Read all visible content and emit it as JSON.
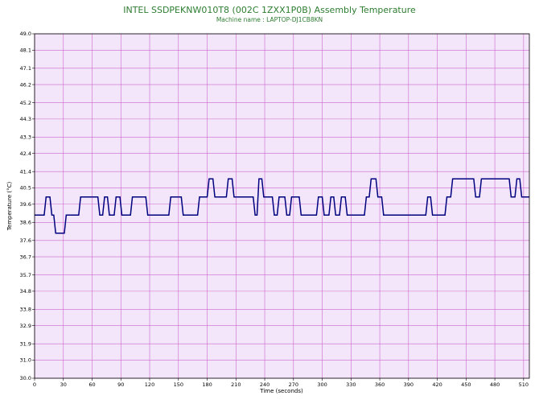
{
  "chart_data": {
    "type": "line",
    "title": "INTEL SSDPEKNW010T8 (002C    1ZXX1P0B) Assembly Temperature",
    "subtitle": "Machine name : LAPTOP-DJ1CB8KN",
    "xlabel": "Time (seconds)",
    "ylabel": "Temperature (°C)",
    "xlim": [
      0,
      516
    ],
    "ylim": [
      30.0,
      49.0
    ],
    "grid": true,
    "legend": "none",
    "colors": {
      "plot_background": "#f3e6fb",
      "grid": "#cc66cc",
      "line": "#00007f",
      "title": "#2e7d32"
    },
    "x_ticks": [
      0,
      30,
      60,
      90,
      120,
      150,
      180,
      210,
      240,
      270,
      300,
      330,
      360,
      390,
      420,
      450,
      480,
      510
    ],
    "x_tick_labels": [
      "0",
      "30",
      "60",
      "90",
      "120",
      "150",
      "180",
      "210",
      "240",
      "270",
      "300",
      "330",
      "360",
      "390",
      "420",
      "450",
      "480",
      "510"
    ],
    "y_ticks": [
      30.0,
      31.0,
      31.9,
      32.9,
      33.8,
      34.8,
      35.7,
      36.7,
      37.6,
      38.6,
      39.6,
      40.5,
      41.4,
      42.4,
      43.3,
      44.3,
      45.2,
      46.2,
      47.1,
      48.1,
      49.0
    ],
    "y_tick_labels": [
      "30.0",
      "31.0",
      "31.9",
      "32.9",
      "33.8",
      "34.8",
      "35.7",
      "36.7",
      "37.6",
      "38.6",
      "39.6",
      "40.5",
      "41.4",
      "42.4",
      "43.3",
      "44.3",
      "45.2",
      "46.2",
      "47.1",
      "48.1",
      "49.0"
    ],
    "series": [
      {
        "x": [
          0,
          10,
          12,
          16,
          18,
          20,
          22,
          31,
          33,
          46,
          48,
          66,
          68,
          71,
          73,
          76,
          78,
          83,
          85,
          89,
          91,
          100,
          102,
          116,
          118,
          140,
          142,
          153,
          155,
          170,
          172,
          180,
          182,
          186,
          188,
          200,
          202,
          206,
          208,
          228,
          230,
          232,
          234,
          237,
          239,
          248,
          250,
          253,
          255,
          261,
          263,
          266,
          268,
          276,
          278,
          294,
          296,
          300,
          302,
          307,
          309,
          312,
          314,
          318,
          320,
          324,
          326,
          344,
          346,
          349,
          351,
          356,
          358,
          362,
          364,
          408,
          410,
          413,
          415,
          428,
          430,
          434,
          436,
          458,
          460,
          464,
          466,
          495,
          497,
          501,
          503,
          506,
          508,
          516
        ],
        "y": [
          39.0,
          39.0,
          40.0,
          40.0,
          39.0,
          39.0,
          38.0,
          38.0,
          39.0,
          39.0,
          40.0,
          40.0,
          39.0,
          39.0,
          40.0,
          40.0,
          39.0,
          39.0,
          40.0,
          40.0,
          39.0,
          39.0,
          40.0,
          40.0,
          39.0,
          39.0,
          40.0,
          40.0,
          39.0,
          39.0,
          40.0,
          40.0,
          41.0,
          41.0,
          40.0,
          40.0,
          41.0,
          41.0,
          40.0,
          40.0,
          39.0,
          39.0,
          41.0,
          41.0,
          40.0,
          40.0,
          39.0,
          39.0,
          40.0,
          40.0,
          39.0,
          39.0,
          40.0,
          40.0,
          39.0,
          39.0,
          40.0,
          40.0,
          39.0,
          39.0,
          40.0,
          40.0,
          39.0,
          39.0,
          40.0,
          40.0,
          39.0,
          39.0,
          40.0,
          40.0,
          41.0,
          41.0,
          40.0,
          40.0,
          39.0,
          39.0,
          40.0,
          40.0,
          39.0,
          39.0,
          40.0,
          40.0,
          41.0,
          41.0,
          40.0,
          40.0,
          41.0,
          41.0,
          40.0,
          40.0,
          41.0,
          41.0,
          40.0,
          40.0
        ]
      }
    ]
  }
}
